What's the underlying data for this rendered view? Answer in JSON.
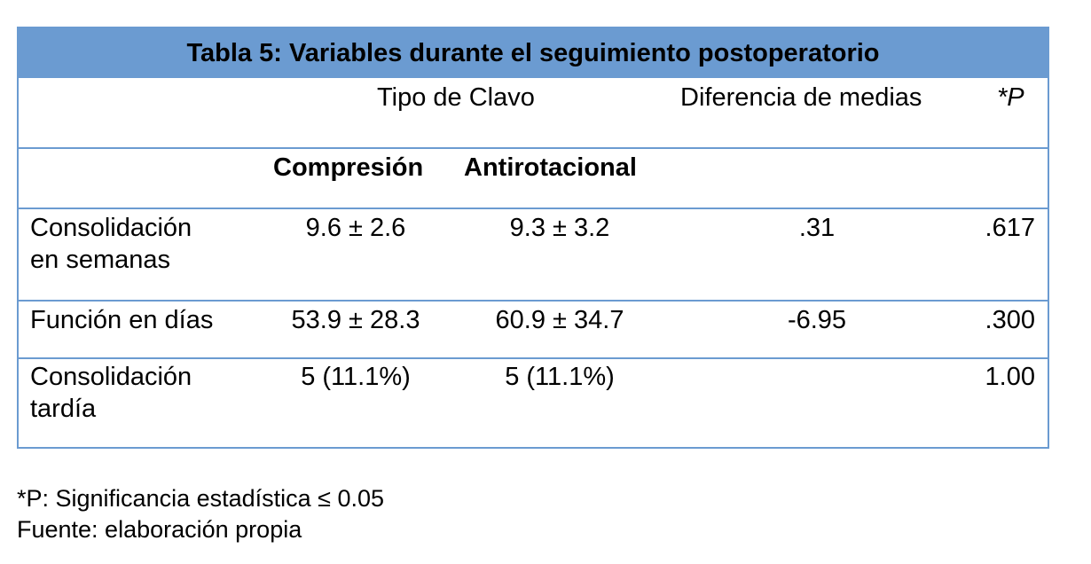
{
  "title": "Tabla  5: Variables durante el seguimiento postoperatorio",
  "header": {
    "tipo_clavo": "Tipo de Clavo",
    "diferencia": "Diferencia  de medias",
    "p": "*P",
    "compresion": "Compresión",
    "antirotacional": "Antirotacional"
  },
  "rows": [
    {
      "label_line1": "Consolidación",
      "label_line2": "en semanas",
      "compresion": "9.6 ±  2.6",
      "antirotacional": "9.3 ± 3.2",
      "diferencia": ".31",
      "p": ".617"
    },
    {
      "label_line1": "Función en días",
      "label_line2": "",
      "compresion": "53.9 ± 28.3",
      "antirotacional": "60.9 ± 34.7",
      "diferencia": "-6.95",
      "p": ".300"
    },
    {
      "label_line1": "Consolidación",
      "label_line2": "tardía",
      "compresion": "5 (11.1%)",
      "antirotacional": "5 (11.1%)",
      "diferencia": "",
      "p": "1.00"
    }
  ],
  "footnotes": {
    "significance": "*P: Significancia estadística ≤ 0.05",
    "source": "Fuente: elaboración propia"
  },
  "colors": {
    "header_blue": "#6b9bd1"
  }
}
